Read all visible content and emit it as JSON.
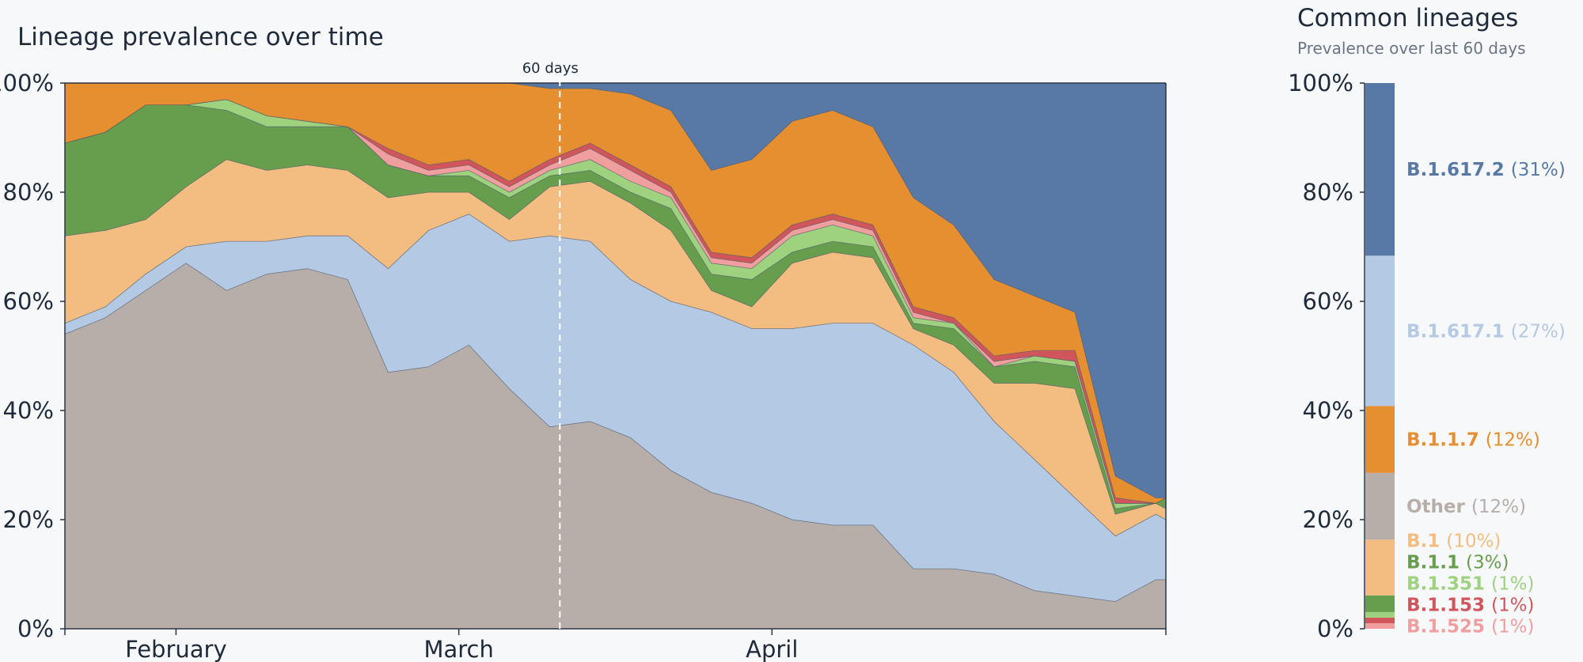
{
  "chart_data": [
    {
      "type": "area",
      "stacked": true,
      "title": "Lineage prevalence over time",
      "ylim": [
        0,
        100
      ],
      "yticks": [
        "0%",
        "20%",
        "40%",
        "60%",
        "80%",
        "100%"
      ],
      "xticks": [
        "February",
        "March",
        "April"
      ],
      "marker_label": "60 days",
      "grid": false,
      "x": [
        "2021-01-21",
        "2021-01-25",
        "2021-01-29",
        "2021-02-02",
        "2021-02-06",
        "2021-02-10",
        "2021-02-14",
        "2021-02-18",
        "2021-02-22",
        "2021-02-26",
        "2021-03-02",
        "2021-03-06",
        "2021-03-10",
        "2021-03-14",
        "2021-03-18",
        "2021-03-22",
        "2021-03-26",
        "2021-03-30",
        "2021-04-03",
        "2021-04-07",
        "2021-04-11",
        "2021-04-15",
        "2021-04-19",
        "2021-04-23",
        "2021-04-27",
        "2021-05-01",
        "2021-05-05",
        "2021-05-09",
        "2021-05-10"
      ],
      "series": [
        {
          "name": "Other",
          "color": "#b7aea9",
          "values": [
            54,
            57,
            62,
            67,
            62,
            65,
            66,
            64,
            47,
            48,
            52,
            44,
            37,
            38,
            35,
            29,
            25,
            23,
            20,
            19,
            19,
            11,
            11,
            10,
            7,
            6,
            5,
            9,
            9
          ]
        },
        {
          "name": "B.1.617.1",
          "color": "#b4c9e4",
          "values": [
            2,
            2,
            3,
            3,
            9,
            6,
            6,
            8,
            19,
            25,
            24,
            27,
            35,
            33,
            29,
            31,
            33,
            32,
            35,
            37,
            37,
            41,
            36,
            28,
            24,
            18,
            12,
            12,
            11
          ]
        },
        {
          "name": "B.1",
          "color": "#f3bd81",
          "values": [
            16,
            14,
            10,
            11,
            15,
            13,
            13,
            12,
            13,
            7,
            4,
            4,
            9,
            11,
            14,
            13,
            4,
            4,
            12,
            13,
            12,
            3,
            5,
            7,
            14,
            20,
            4,
            2,
            2
          ]
        },
        {
          "name": "B.1.1",
          "color": "#679e4e",
          "values": [
            17,
            18,
            21,
            15,
            9,
            8,
            7,
            8,
            6,
            3,
            3,
            4,
            2,
            2,
            2,
            4,
            3,
            5,
            2,
            2,
            2,
            1,
            3,
            3,
            4,
            4,
            1,
            0,
            2
          ]
        },
        {
          "name": "B.1.351",
          "color": "#9ed27f",
          "values": [
            0,
            0,
            0,
            0,
            2,
            2,
            1,
            0,
            0,
            0,
            1,
            1,
            1,
            2,
            2,
            2,
            2,
            2,
            3,
            3,
            2,
            1,
            1,
            0,
            1,
            1,
            1,
            0,
            0
          ]
        },
        {
          "name": "B.1.525",
          "color": "#f09e9e",
          "values": [
            0,
            0,
            0,
            0,
            0,
            0,
            0,
            0,
            2,
            1,
            1,
            1,
            1,
            2,
            2,
            1,
            1,
            1,
            1,
            1,
            1,
            1,
            0,
            1,
            0,
            0,
            0,
            0,
            0
          ]
        },
        {
          "name": "B.1.153",
          "color": "#d1565b",
          "values": [
            0,
            0,
            0,
            0,
            0,
            0,
            0,
            0,
            1,
            1,
            1,
            1,
            1,
            1,
            1,
            1,
            1,
            1,
            1,
            1,
            1,
            1,
            1,
            1,
            1,
            2,
            1,
            0,
            0
          ]
        },
        {
          "name": "B.1.1.7",
          "color": "#e58f31",
          "values": [
            11,
            9,
            4,
            4,
            3,
            6,
            7,
            8,
            12,
            15,
            14,
            18,
            13,
            10,
            13,
            14,
            15,
            18,
            19,
            19,
            18,
            20,
            17,
            14,
            10,
            7,
            4,
            1,
            0
          ]
        },
        {
          "name": "B.1.617.2",
          "color": "#5878a6",
          "values": [
            0,
            0,
            0,
            0,
            0,
            0,
            0,
            0,
            0,
            0,
            0,
            0,
            1,
            1,
            2,
            5,
            16,
            14,
            7,
            5,
            8,
            21,
            26,
            36,
            39,
            42,
            72,
            76,
            76
          ]
        }
      ]
    },
    {
      "type": "bar",
      "stacked": true,
      "title": "Common lineages",
      "subtitle": "Prevalence over last 60 days",
      "ylim": [
        0,
        100
      ],
      "yticks": [
        "0%",
        "20%",
        "40%",
        "60%",
        "80%",
        "100%"
      ],
      "series": [
        {
          "name": "B.1.525",
          "pct_label": "(1%)",
          "value": 1,
          "color": "#f09e9e"
        },
        {
          "name": "B.1.153",
          "pct_label": "(1%)",
          "value": 1,
          "color": "#d1565b"
        },
        {
          "name": "B.1.351",
          "pct_label": "(1%)",
          "value": 1,
          "color": "#9ed27f"
        },
        {
          "name": "B.1.1",
          "pct_label": "(3%)",
          "value": 3,
          "color": "#679e4e"
        },
        {
          "name": "B.1",
          "pct_label": "(10%)",
          "value": 10,
          "color": "#f3bd81"
        },
        {
          "name": "Other",
          "pct_label": "(12%)",
          "value": 12,
          "color": "#b7aea9"
        },
        {
          "name": "B.1.1.7",
          "pct_label": "(12%)",
          "value": 12,
          "color": "#e58f31"
        },
        {
          "name": "B.1.617.1",
          "pct_label": "(27%)",
          "value": 27,
          "color": "#b4c9e4"
        },
        {
          "name": "B.1.617.2",
          "pct_label": "(31%)",
          "value": 31,
          "color": "#5878a6"
        }
      ]
    }
  ]
}
